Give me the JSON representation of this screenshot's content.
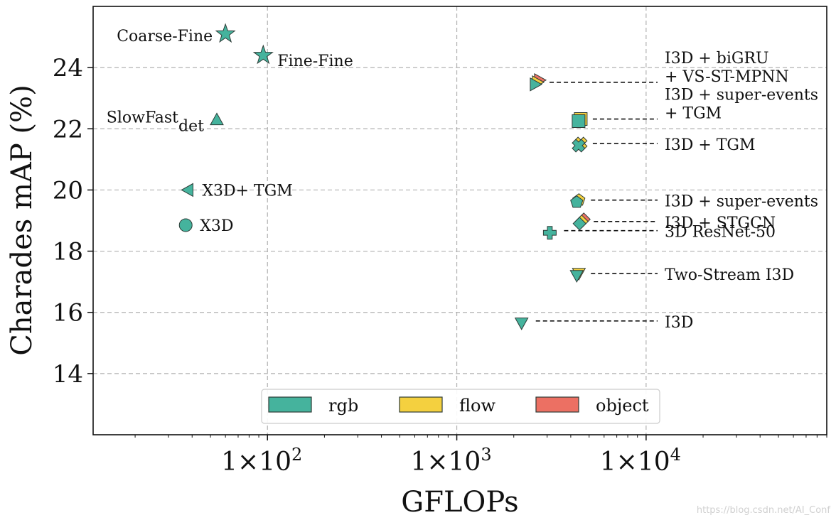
{
  "chart_data": {
    "type": "scatter",
    "xlabel": "GFLOPs",
    "ylabel": "Charades mAP (%)",
    "x_scale": "log",
    "xlim": [
      12,
      90000
    ],
    "ylim": [
      12,
      26
    ],
    "x_ticks": [
      {
        "value": 100,
        "label": "1×10",
        "exp": "2"
      },
      {
        "value": 1000,
        "label": "1×10",
        "exp": "3"
      },
      {
        "value": 10000,
        "label": "1×10",
        "exp": "4"
      }
    ],
    "y_ticks": [
      14,
      16,
      18,
      20,
      22,
      24
    ],
    "grid": true,
    "legend": {
      "position": "bottom-center",
      "entries": [
        {
          "label": "rgb",
          "color": "#45b39d"
        },
        {
          "label": "flow",
          "color": "#f4d03f"
        },
        {
          "label": "object",
          "color": "#ec7063"
        }
      ]
    },
    "points": [
      {
        "name": "Coarse-Fine",
        "x": 60,
        "y": 25.1,
        "marker": "star",
        "colors": [
          "rgb"
        ],
        "label_side": "left"
      },
      {
        "name": "Fine-Fine",
        "x": 95,
        "y": 24.4,
        "marker": "star",
        "colors": [
          "rgb"
        ],
        "label_side": "right-below"
      },
      {
        "name": "SlowFast",
        "sub": "det",
        "x": 54,
        "y": 22.3,
        "marker": "triangle-up",
        "colors": [
          "rgb"
        ],
        "label_side": "left"
      },
      {
        "name": "X3D+ TGM",
        "x": 38,
        "y": 20.0,
        "marker": "triangle-left",
        "colors": [
          "rgb"
        ],
        "label_side": "right"
      },
      {
        "name": "X3D",
        "x": 37,
        "y": 18.85,
        "marker": "circle",
        "colors": [
          "rgb"
        ],
        "label_side": "right"
      },
      {
        "name": "I3D + biGRU",
        "name2": "+ VS-ST-MPNN",
        "x": 2600,
        "y": 23.45,
        "marker": "triangle-right",
        "colors": [
          "rgb",
          "flow",
          "object"
        ],
        "label_side": "leader"
      },
      {
        "name": "I3D + super-events",
        "name2": "+ TGM",
        "x": 4400,
        "y": 22.25,
        "marker": "square",
        "colors": [
          "rgb",
          "flow"
        ],
        "label_side": "leader"
      },
      {
        "name": "I3D + TGM",
        "x": 4400,
        "y": 21.45,
        "marker": "x",
        "colors": [
          "rgb",
          "flow"
        ],
        "label_side": "leader"
      },
      {
        "name": "I3D + super-events",
        "x": 4300,
        "y": 19.6,
        "marker": "pentagon",
        "colors": [
          "rgb",
          "flow"
        ],
        "label_side": "leader"
      },
      {
        "name": "I3D + STGCN",
        "x": 4450,
        "y": 18.9,
        "marker": "diamond",
        "colors": [
          "rgb",
          "flow",
          "object"
        ],
        "label_side": "leader"
      },
      {
        "name": "3D ResNet-50",
        "x": 3100,
        "y": 18.6,
        "marker": "plus",
        "colors": [
          "rgb"
        ],
        "label_side": "leader"
      },
      {
        "name": "Two-Stream I3D",
        "x": 4300,
        "y": 17.2,
        "marker": "triangle-down",
        "colors": [
          "rgb",
          "flow"
        ],
        "label_side": "leader"
      },
      {
        "name": "I3D",
        "x": 2200,
        "y": 15.65,
        "marker": "triangle-down",
        "colors": [
          "rgb"
        ],
        "label_side": "leader"
      }
    ]
  },
  "watermark": "https://blog.csdn.net/AI_Conf"
}
